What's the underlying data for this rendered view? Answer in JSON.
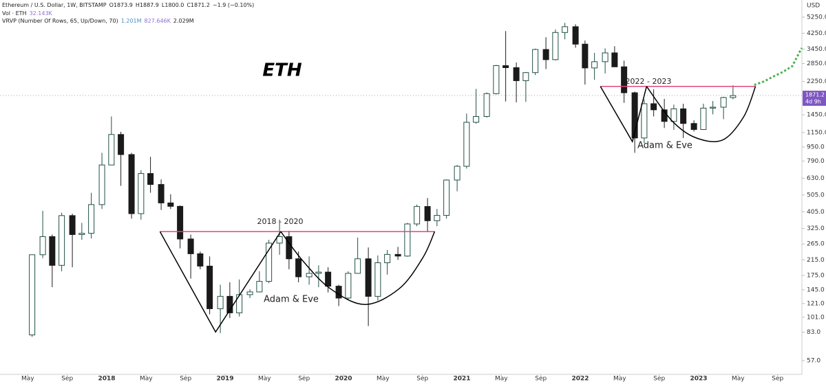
{
  "chart_data": {
    "type": "candlestick",
    "header": {
      "symbol": "Ethereum / U.S. Dollar, 1W, BITSTAMP",
      "open": "O1873.9",
      "high": "H1887.9",
      "low": "L1800.0",
      "close": "C1871.2",
      "change": "−1.9 (−0.10%)",
      "volume_name": "Vol · ETH",
      "volume_value": "32.143K",
      "vrvp_name": "VRVP (Number Of Rows, 65, Up/Down, 70)",
      "vrvp_up": "1.201M",
      "vrvp_down": "827.646K",
      "vrvp_total": "2.029M"
    },
    "title": "ETH",
    "y_unit": "USD",
    "log_scale": true,
    "grid": false,
    "up_color": "#1f4f44",
    "down_color": "#1a1a1a",
    "last_price": 1871.2,
    "countdown": "4d 9h",
    "last_price_color": "#7e57c2",
    "xlim": [
      2017.099,
      2023.872
    ],
    "ylim": [
      47.6,
      6580
    ],
    "xticks": [
      {
        "value": 2017.333,
        "label": "May"
      },
      {
        "value": 2017.667,
        "label": "Sep"
      },
      2018,
      {
        "value": 2018.333,
        "label": "May"
      },
      {
        "value": 2018.667,
        "label": "Sep"
      },
      2019,
      {
        "value": 2019.333,
        "label": "May"
      },
      {
        "value": 2019.667,
        "label": "Sep"
      },
      2020,
      {
        "value": 2020.333,
        "label": "May"
      },
      {
        "value": 2020.667,
        "label": "Sep"
      },
      2021,
      {
        "value": 2021.333,
        "label": "May"
      },
      {
        "value": 2021.667,
        "label": "Sep"
      },
      2022,
      {
        "value": 2022.333,
        "label": "May"
      },
      {
        "value": 2022.667,
        "label": "Sep"
      },
      2023,
      {
        "value": 2023.333,
        "label": "May"
      },
      {
        "value": 2023.667,
        "label": "Sep"
      }
    ],
    "yticks": [
      {
        "value": 57,
        "label": "57.0"
      },
      {
        "value": 83,
        "label": "83.0"
      },
      {
        "value": 101,
        "label": "101.0"
      },
      {
        "value": 121,
        "label": "121.0"
      },
      {
        "value": 145,
        "label": "145.0"
      },
      {
        "value": 175,
        "label": "175.0"
      },
      {
        "value": 215,
        "label": "215.0"
      },
      {
        "value": 265,
        "label": "265.0"
      },
      {
        "value": 325,
        "label": "325.0"
      },
      {
        "value": 405,
        "label": "405.0"
      },
      {
        "value": 505,
        "label": "505.0"
      },
      {
        "value": 630,
        "label": "630.0"
      },
      {
        "value": 790,
        "label": "790.0"
      },
      {
        "value": 950,
        "label": "950.0"
      },
      {
        "value": 1150,
        "label": "1150.0"
      },
      {
        "value": 1450,
        "label": "1450.0"
      },
      {
        "value": 2250,
        "label": "2250.0"
      },
      {
        "value": 2850,
        "label": "2850.0"
      },
      {
        "value": 3450,
        "label": "3450.0"
      },
      {
        "value": 4250,
        "label": "4250.0"
      },
      {
        "value": 5250,
        "label": "5250.0"
      }
    ],
    "candles": {
      "x": [
        2017.37,
        2017.46,
        2017.54,
        2017.62,
        2017.71,
        2017.79,
        2017.87,
        2017.96,
        2018.04,
        2018.12,
        2018.21,
        2018.29,
        2018.37,
        2018.46,
        2018.54,
        2018.62,
        2018.71,
        2018.79,
        2018.87,
        2018.96,
        2019.04,
        2019.12,
        2019.21,
        2019.29,
        2019.37,
        2019.46,
        2019.54,
        2019.62,
        2019.71,
        2019.79,
        2019.87,
        2019.96,
        2020.04,
        2020.12,
        2020.21,
        2020.29,
        2020.37,
        2020.46,
        2020.54,
        2020.62,
        2020.71,
        2020.79,
        2020.87,
        2020.96,
        2021.04,
        2021.12,
        2021.21,
        2021.29,
        2021.37,
        2021.46,
        2021.54,
        2021.62,
        2021.71,
        2021.79,
        2021.87,
        2021.96,
        2022.04,
        2022.12,
        2022.21,
        2022.29,
        2022.37,
        2022.46,
        2022.54,
        2022.62,
        2022.71,
        2022.79,
        2022.87,
        2022.96,
        2023.04,
        2023.12,
        2023.21,
        2023.29
      ],
      "open": [
        80,
        230,
        292,
        200,
        385,
        300,
        305,
        445,
        750,
        1120,
        860,
        395,
        670,
        580,
        455,
        435,
        283,
        233,
        198,
        113,
        133,
        107,
        136,
        141,
        162,
        268,
        292,
        218,
        172,
        180,
        183,
        152,
        130,
        180,
        218,
        133,
        207,
        231,
        226,
        345,
        434,
        360,
        386,
        615,
        737,
        1315,
        1420,
        1918,
        2773,
        2700,
        2275,
        2530,
        3430,
        3000,
        4290,
        4630,
        3680,
        2690,
        2920,
        3280,
        2730,
        1940,
        1070,
        1680,
        1550,
        1330,
        1570,
        1295,
        1196,
        1585,
        1605,
        1822
      ],
      "high": [
        230,
        410,
        300,
        400,
        395,
        350,
        520,
        880,
        1420,
        1160,
        880,
        700,
        835,
        620,
        510,
        440,
        300,
        240,
        225,
        155,
        160,
        166,
        146,
        185,
        280,
        365,
        315,
        240,
        225,
        200,
        195,
        155,
        185,
        288,
        253,
        228,
        245,
        255,
        350,
        445,
        485,
        420,
        620,
        750,
        1475,
        2040,
        1950,
        2800,
        4370,
        2890,
        2550,
        3470,
        4030,
        4460,
        4870,
        4780,
        3860,
        3280,
        3480,
        3580,
        2960,
        1970,
        1780,
        2030,
        1790,
        1660,
        1680,
        1350,
        1680,
        1740,
        1840,
        2140
      ],
      "low": [
        78,
        220,
        150,
        185,
        195,
        280,
        285,
        420,
        750,
        570,
        370,
        365,
        520,
        415,
        420,
        250,
        168,
        190,
        105,
        82,
        100,
        102,
        130,
        140,
        158,
        230,
        190,
        160,
        155,
        150,
        140,
        117,
        128,
        180,
        90,
        126,
        177,
        215,
        224,
        335,
        310,
        335,
        370,
        530,
        715,
        1290,
        1400,
        1900,
        1730,
        1710,
        1720,
        2450,
        2650,
        2970,
        3920,
        3510,
        2160,
        2300,
        2500,
        2720,
        1700,
        880,
        1000,
        1420,
        1220,
        1190,
        1070,
        1165,
        1190,
        1460,
        1370,
        1780
      ],
      "close": [
        230,
        292,
        200,
        385,
        300,
        305,
        445,
        750,
        1120,
        860,
        395,
        670,
        580,
        455,
        435,
        283,
        233,
        198,
        113,
        133,
        107,
        136,
        141,
        162,
        268,
        292,
        218,
        172,
        180,
        183,
        152,
        130,
        180,
        218,
        133,
        207,
        231,
        226,
        345,
        434,
        360,
        386,
        615,
        737,
        1315,
        1420,
        1918,
        2773,
        2700,
        2275,
        2530,
        3430,
        3000,
        4290,
        4630,
        3680,
        2690,
        2920,
        3280,
        2730,
        1940,
        1070,
        1680,
        1550,
        1330,
        1570,
        1295,
        1196,
        1585,
        1605,
        1822,
        1870
      ]
    },
    "projection": {
      "color": "#4caf50",
      "x": [
        2023.47,
        2023.55,
        2023.63,
        2023.71,
        2023.79,
        2023.87
      ],
      "values": [
        2150,
        2250,
        2400,
        2550,
        2750,
        3500
      ]
    },
    "annotations": [
      "2018 - 2020",
      "Adam & Eve",
      "2022 - 2023",
      "Adam & Eve"
    ],
    "drawings": [
      {
        "color": "#e0457b",
        "x": [
          2018.45,
          2020.77
        ],
        "values": [
          312,
          312
        ]
      },
      {
        "color": "#000000",
        "x": [
          2018.45,
          2018.92,
          2019.47
        ],
        "values": [
          312,
          83.2,
          312
        ]
      },
      {
        "color": "#000000",
        "smooth": true,
        "x": [
          2019.47,
          2019.66,
          2019.89,
          2020.18,
          2020.47,
          2020.67,
          2020.77
        ],
        "values": [
          312,
          211,
          147,
          119.5,
          147,
          221,
          312
        ]
      },
      {
        "color": "#e0457b",
        "x": [
          2022.17,
          2023.48
        ],
        "values": [
          2110,
          2110
        ]
      },
      {
        "color": "#000000",
        "x": [
          2022.17,
          2022.44,
          2022.56
        ],
        "values": [
          2110,
          1020,
          2110
        ]
      },
      {
        "color": "#000000",
        "smooth": true,
        "x": [
          2022.56,
          2022.77,
          2022.97,
          2023.2,
          2023.38,
          2023.48
        ],
        "values": [
          2110,
          1351,
          1077,
          1040,
          1413,
          2110
        ]
      }
    ]
  }
}
